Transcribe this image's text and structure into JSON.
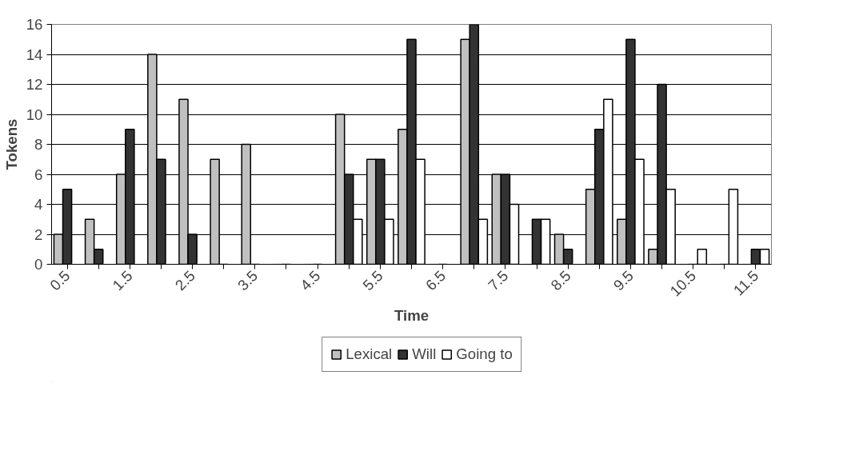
{
  "chart_data": {
    "type": "bar",
    "xlabel": "Time",
    "ylabel": "Tokens",
    "categories": [
      "0.5",
      null,
      "1.5",
      null,
      "2.5",
      null,
      "3.5",
      null,
      "4.5",
      null,
      "5.5",
      null,
      "6.5",
      null,
      "7.5",
      null,
      "8.5",
      null,
      "9.5",
      null,
      "10.5",
      null,
      "11.5"
    ],
    "series": [
      {
        "name": "Lexical",
        "color": "#c0c0c0",
        "values": [
          2,
          3,
          6,
          14,
          11,
          7,
          8,
          0,
          0,
          10,
          7,
          9,
          0,
          15,
          6,
          0,
          2,
          5,
          3,
          1,
          0,
          0,
          0
        ]
      },
      {
        "name": "Will",
        "color": "#333333",
        "values": [
          5,
          1,
          9,
          7,
          2,
          0,
          0,
          0,
          0,
          6,
          7,
          15,
          0,
          16,
          6,
          3,
          1,
          9,
          15,
          12,
          0,
          0,
          1
        ]
      },
      {
        "name": "Going to",
        "color": "#ffffff",
        "values": [
          0,
          0,
          0,
          0,
          0,
          0,
          0,
          0,
          0,
          3,
          3,
          7,
          0,
          3,
          4,
          3,
          0,
          11,
          7,
          5,
          1,
          5,
          1
        ]
      }
    ],
    "ylim": [
      0,
      16
    ],
    "yticks": [
      0,
      2,
      4,
      6,
      8,
      10,
      12,
      14,
      16
    ],
    "grid": "y",
    "legend": "bottom"
  }
}
